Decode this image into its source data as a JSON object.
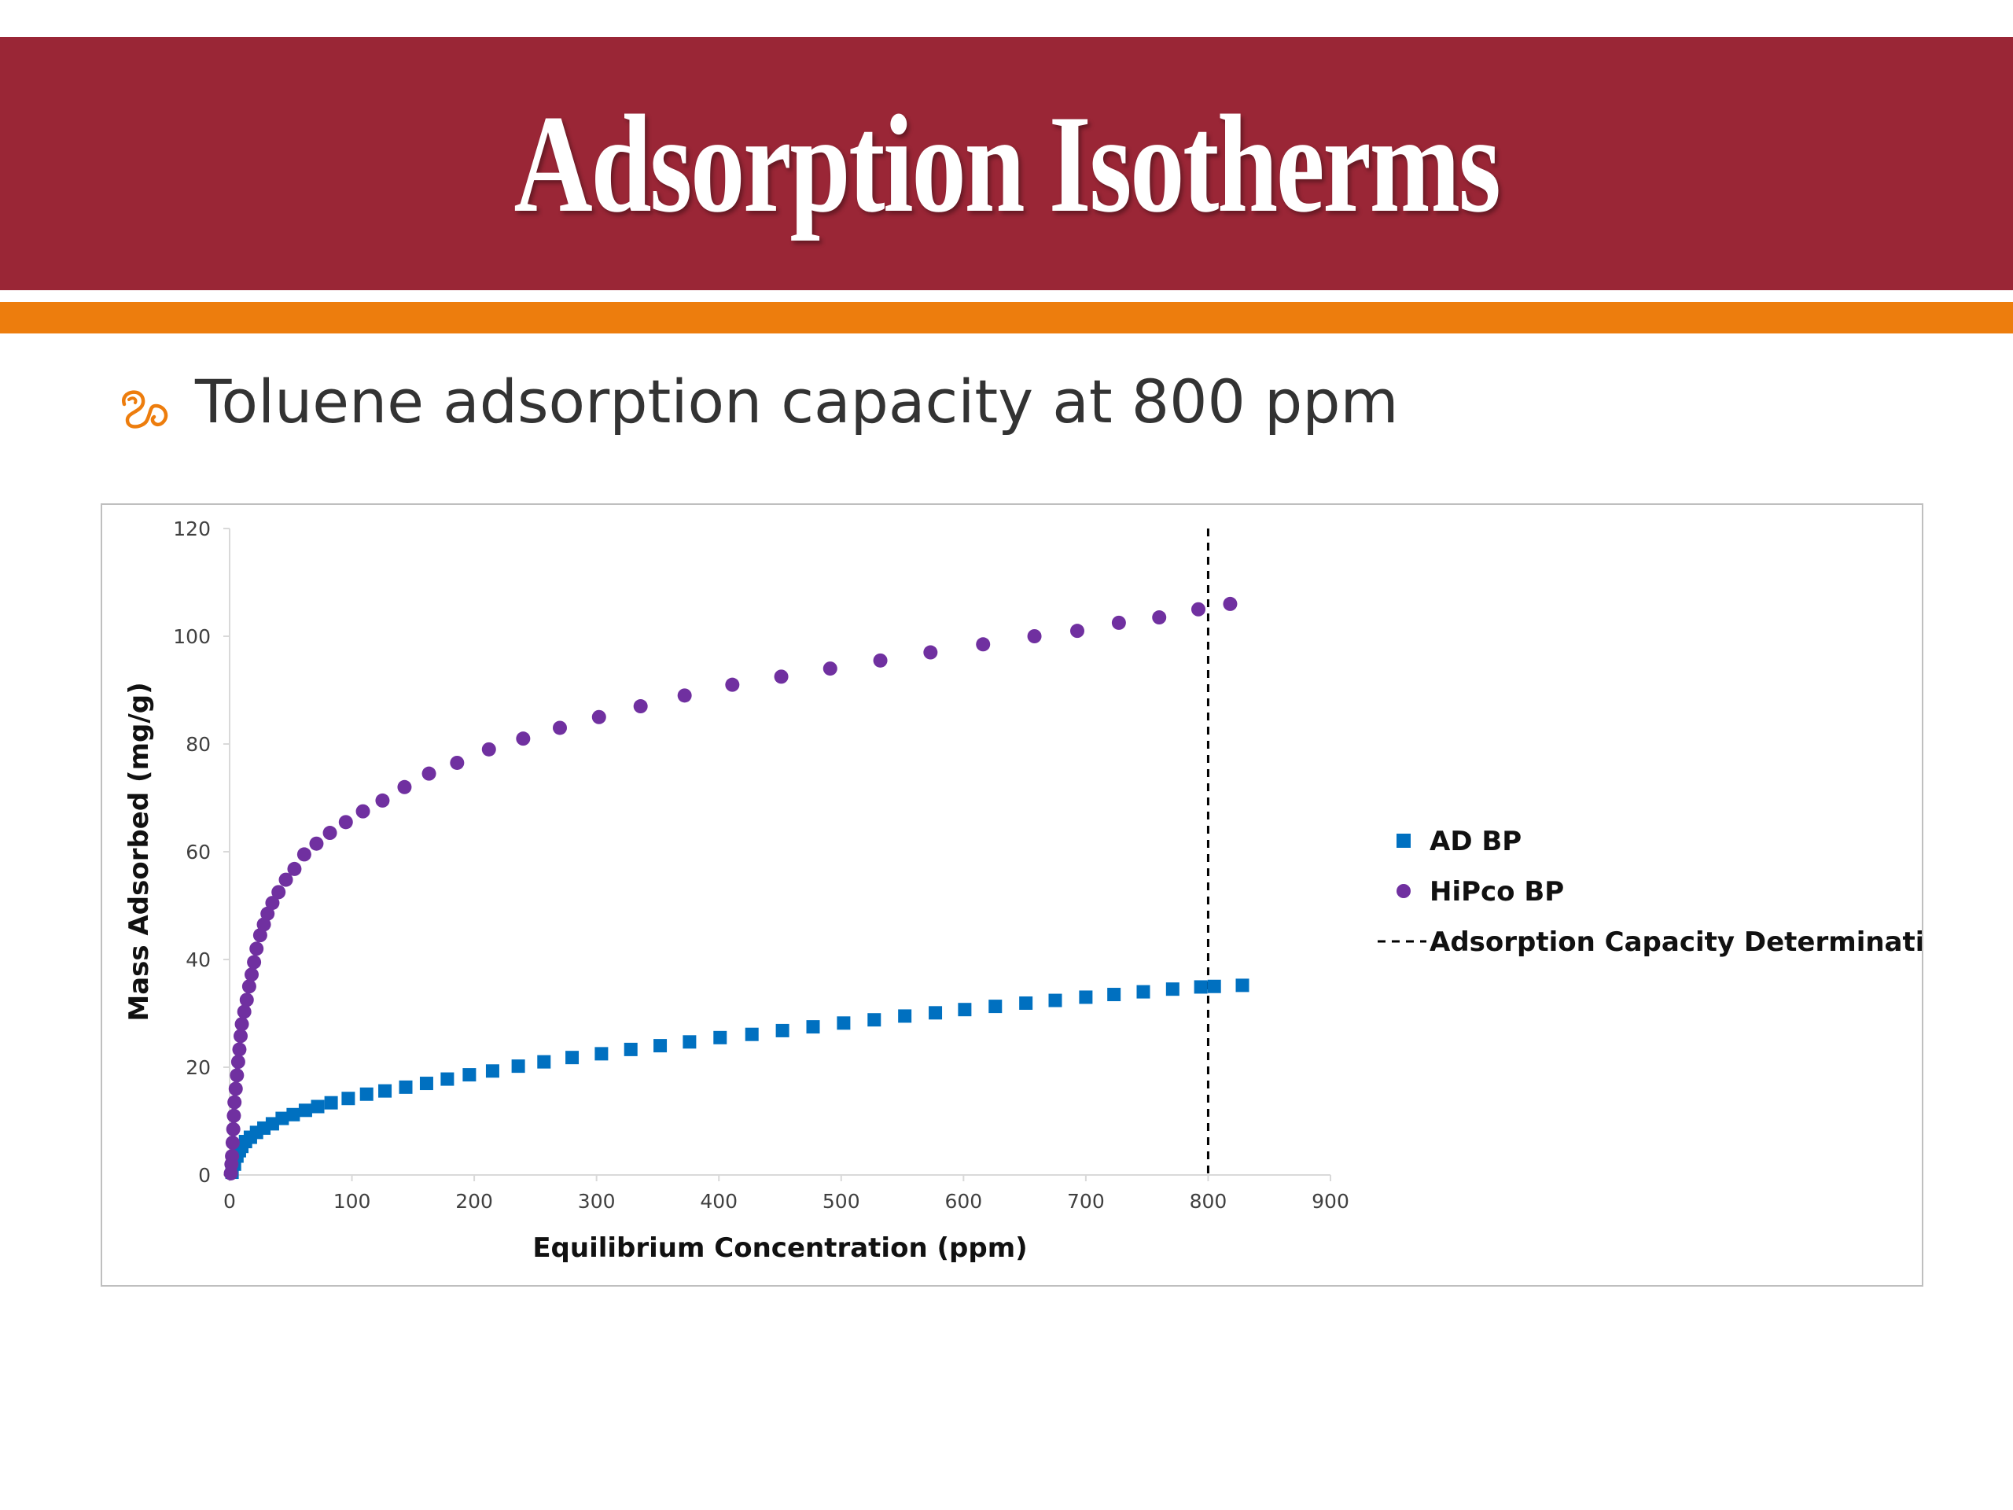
{
  "slide": {
    "title": "Adsorption Isotherms",
    "bullet": "Toluene adsorption capacity at 800 ppm",
    "bullet_icon": "ornament-bullet-icon",
    "colors": {
      "title_band": "#9a2636",
      "accent_band": "#ed7d0d",
      "bullet_icon": "#ed7d0d"
    }
  },
  "chart_data": {
    "type": "scatter",
    "xlabel": "Equilibrium Concentration (ppm)",
    "ylabel": "Mass Adsorbed (mg/g)",
    "xlim": [
      0,
      900
    ],
    "ylim": [
      0,
      120
    ],
    "xticks": [
      0,
      100,
      200,
      300,
      400,
      500,
      600,
      700,
      800,
      900
    ],
    "yticks": [
      0,
      20,
      40,
      60,
      80,
      100,
      120
    ],
    "grid": false,
    "legend_position": "right",
    "series": [
      {
        "name": "AD BP",
        "marker": "square",
        "color": "#0070c0",
        "x": [
          2,
          4,
          6,
          8,
          10,
          13,
          17,
          22,
          28,
          35,
          43,
          52,
          62,
          72,
          83,
          97,
          112,
          127,
          144,
          161,
          178,
          196,
          215,
          236,
          257,
          280,
          304,
          328,
          352,
          376,
          401,
          427,
          452,
          477,
          502,
          527,
          552,
          577,
          601,
          626,
          651,
          675,
          700,
          723,
          747,
          771,
          794,
          805,
          828
        ],
        "y": [
          0.5,
          2,
          3.5,
          4.5,
          5.3,
          6.2,
          7,
          7.9,
          8.7,
          9.5,
          10.5,
          11.2,
          12,
          12.7,
          13.4,
          14.2,
          15,
          15.6,
          16.3,
          17,
          17.8,
          18.6,
          19.3,
          20.2,
          21,
          21.8,
          22.5,
          23.3,
          24,
          24.7,
          25.5,
          26.1,
          26.8,
          27.5,
          28.2,
          28.8,
          29.5,
          30.1,
          30.7,
          31.3,
          31.9,
          32.4,
          33,
          33.5,
          34,
          34.5,
          34.9,
          35,
          35.2
        ]
      },
      {
        "name": "HiPco BP",
        "marker": "circle",
        "color": "#7030a0",
        "x": [
          1,
          1.5,
          2,
          2.5,
          3,
          3.5,
          4,
          5,
          6,
          7,
          8,
          9,
          10,
          12,
          14,
          16,
          18,
          20,
          22,
          25,
          28,
          31,
          35,
          40,
          46,
          53,
          61,
          71,
          82,
          95,
          109,
          125,
          143,
          163,
          186,
          212,
          240,
          270,
          302,
          336,
          372,
          411,
          451,
          491,
          532,
          573,
          616,
          658,
          693,
          727,
          760,
          792,
          818
        ],
        "y": [
          0.3,
          2,
          3.5,
          6,
          8.5,
          11,
          13.5,
          16,
          18.5,
          21,
          23.3,
          25.8,
          28,
          30.3,
          32.5,
          35,
          37.2,
          39.5,
          42,
          44.5,
          46.5,
          48.5,
          50.5,
          52.5,
          54.8,
          56.8,
          59.5,
          61.5,
          63.5,
          65.5,
          67.5,
          69.5,
          72,
          74.5,
          76.5,
          79,
          81,
          83,
          85,
          87,
          89,
          91,
          92.5,
          94,
          95.5,
          97,
          98.5,
          100,
          101,
          102.5,
          103.5,
          105,
          106
        ]
      }
    ],
    "reference_line": {
      "name": "Adsorption Capacity Determination",
      "x": 800,
      "style": "dashed",
      "color": "#000000"
    }
  }
}
